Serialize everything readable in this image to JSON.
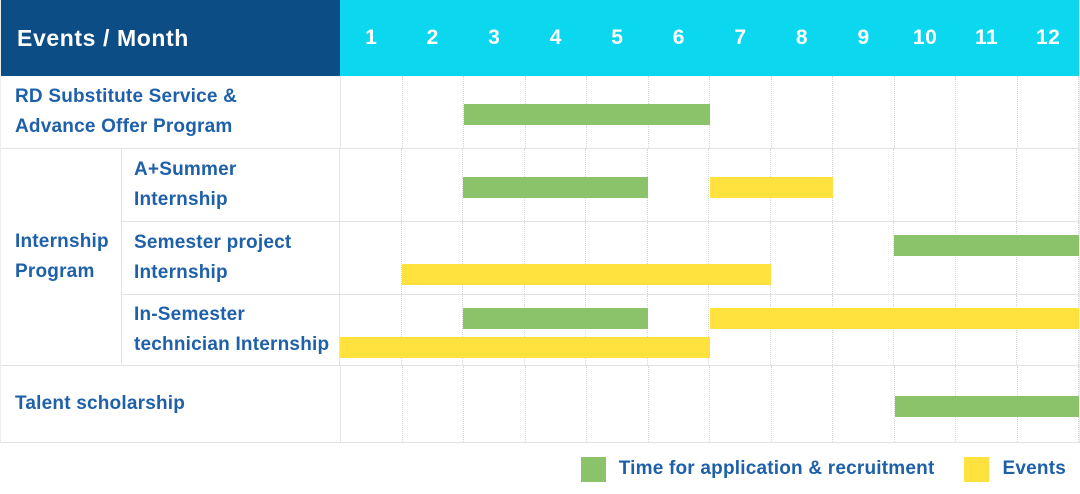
{
  "header": {
    "corner_label": "Events / Month"
  },
  "chart_data": {
    "type": "gantt",
    "title": "Events / Month",
    "unit": "month",
    "months": [
      "1",
      "2",
      "3",
      "4",
      "5",
      "6",
      "7",
      "8",
      "9",
      "10",
      "11",
      "12"
    ],
    "x_range": [
      1,
      12
    ],
    "colors": {
      "green": "#8BC36A",
      "yellow": "#FFE23E",
      "header_navy": "#0D4D85",
      "header_cyan": "#0BD7EE",
      "label_text_blue": "#1E60A9",
      "grid_line": "#D8D8D8",
      "row_border": "#E3E3E3"
    },
    "group_label": [
      "Internship",
      "Program"
    ],
    "rows": [
      {
        "group": null,
        "label": [
          "RD Substitute Service &",
          "Advance Offer Program"
        ],
        "bars": [
          {
            "color": "green",
            "start_month": 3,
            "end_month": 6,
            "lane": "mid"
          }
        ]
      },
      {
        "group": "Internship Program",
        "label": [
          "A+Summer",
          "Internship"
        ],
        "bars": [
          {
            "color": "green",
            "start_month": 3,
            "end_month": 5,
            "lane": "mid"
          },
          {
            "color": "yellow",
            "start_month": 7,
            "end_month": 8,
            "lane": "mid"
          }
        ]
      },
      {
        "group": "Internship Program",
        "label": [
          "Semester project",
          "Internship"
        ],
        "bars": [
          {
            "color": "green",
            "start_month": 10,
            "end_month": 12,
            "lane": "top"
          },
          {
            "color": "yellow",
            "start_month": 2,
            "end_month": 7,
            "lane": "bottom"
          }
        ]
      },
      {
        "group": "Internship Program",
        "label": [
          "In-Semester",
          "technician Internship"
        ],
        "bars": [
          {
            "color": "green",
            "start_month": 3,
            "end_month": 5,
            "lane": "top"
          },
          {
            "color": "yellow",
            "start_month": 7,
            "end_month": 12,
            "lane": "top"
          },
          {
            "color": "yellow",
            "start_month": 1,
            "end_month": 6,
            "lane": "bottom"
          }
        ]
      },
      {
        "group": null,
        "label": [
          "Talent scholarship"
        ],
        "bars": [
          {
            "color": "green",
            "start_month": 10,
            "end_month": 12,
            "lane": "mid"
          }
        ]
      }
    ],
    "legend": [
      {
        "color": "green",
        "label": "Time for application & recruitment"
      },
      {
        "color": "yellow",
        "label": "Events"
      }
    ],
    "layout": {
      "legend_position": "bottom-right",
      "grid": "dotted vertical month lines",
      "bars_on_grid": true
    }
  }
}
